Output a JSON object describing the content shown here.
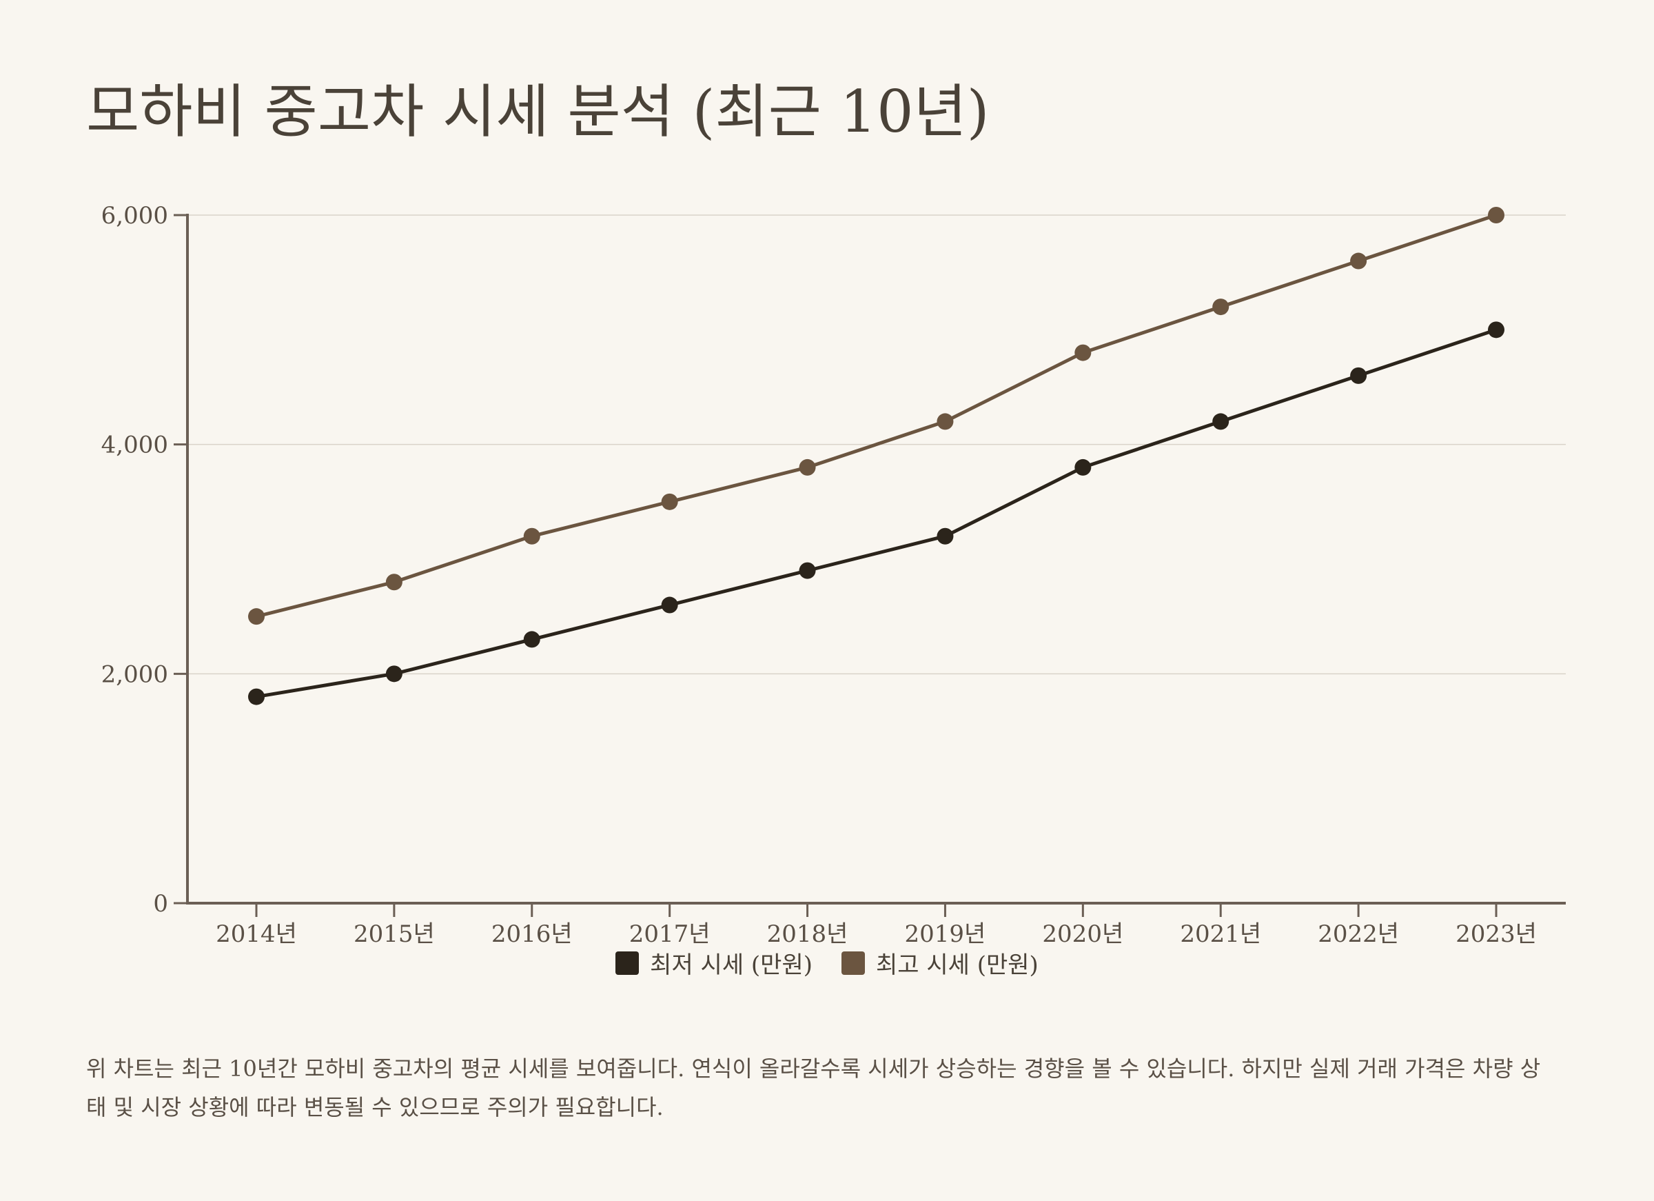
{
  "title": "모하비 중고차 시세 분석 (최근 10년)",
  "description": "위 차트는 최근 10년간 모하비 중고차의 평균 시세를 보여줍니다. 연식이 올라갈수록 시세가 상승하는 경향을 볼 수 있습니다. 하지만 실제 거래 가격은 차량 상태 및 시장 상황에 따라 변동될 수 있으므로 주의가 필요합니다.",
  "chart_data": {
    "type": "line",
    "title": "모하비 중고차 시세 분석 (최근 10년)",
    "xlabel": "",
    "ylabel": "",
    "categories": [
      "2014년",
      "2015년",
      "2016년",
      "2017년",
      "2018년",
      "2019년",
      "2020년",
      "2021년",
      "2022년",
      "2023년"
    ],
    "y_ticks": [
      "0",
      "2,000",
      "4,000",
      "6,000"
    ],
    "ylim": [
      0,
      6000
    ],
    "grid": true,
    "legend_position": "bottom-center",
    "series": [
      {
        "name": "최저 시세 (만원)",
        "color": "#2b241b",
        "values": [
          1800,
          2000,
          2300,
          2600,
          2900,
          3200,
          3800,
          4200,
          4600,
          5000
        ]
      },
      {
        "name": "최고 시세 (만원)",
        "color": "#6b5540",
        "values": [
          2500,
          2800,
          3200,
          3500,
          3800,
          4200,
          4800,
          5200,
          5600,
          6000
        ]
      }
    ]
  }
}
